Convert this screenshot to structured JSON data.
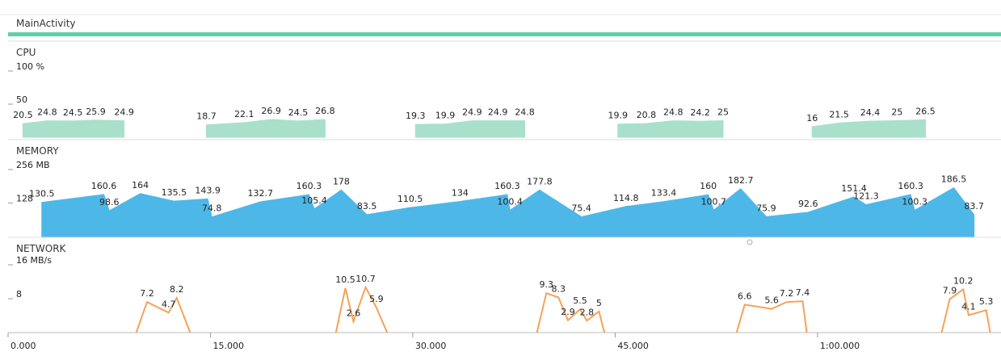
{
  "header": {
    "title": "MainActivity"
  },
  "panels": [
    {
      "type": "area",
      "title": "CPU",
      "color": "#a8e0cc",
      "ylim": [
        0,
        100
      ],
      "yticks": [
        {
          "value": 100,
          "label": "100 %"
        },
        50
      ],
      "x": [
        1.1,
        2.9,
        4.8,
        6.5,
        8.6,
        null,
        14.7,
        17.5,
        19.5,
        21.5,
        23.5,
        null,
        30.2,
        32.4,
        34.4,
        36.3,
        38.3,
        null,
        45.2,
        47.3,
        49.3,
        51.3,
        53.0,
        null,
        59.6,
        61.6,
        63.9,
        65.9,
        68.0
      ],
      "values": [
        20.5,
        24.8,
        24.5,
        25.9,
        24.9,
        null,
        18.7,
        22.1,
        26.9,
        24.5,
        26.8,
        null,
        19.3,
        19.9,
        24.9,
        24.9,
        24.8,
        null,
        19.9,
        20.8,
        24.8,
        24.2,
        25,
        null,
        16,
        21.5,
        24.4,
        25,
        26.5
      ]
    },
    {
      "type": "area",
      "title": "MEMORY",
      "color": "#4db8e8",
      "ylim": [
        0,
        256
      ],
      "yticks": [
        {
          "value": 256,
          "label": "256 MB"
        },
        128
      ],
      "x": [
        2.5,
        7.1,
        7.5,
        9.8,
        12.3,
        14.8,
        15.1,
        18.7,
        22.3,
        22.7,
        24.7,
        26.6,
        29.8,
        33.5,
        37.0,
        37.2,
        39.4,
        42.5,
        45.8,
        48.6,
        51.9,
        52.3,
        54.3,
        56.2,
        59.3,
        62.7,
        63.6,
        66.9,
        67.2,
        70.1,
        71.6
      ],
      "values": [
        130.5,
        160.6,
        98.6,
        164,
        135.5,
        143.9,
        74.8,
        132.7,
        160.3,
        105.4,
        178,
        83.5,
        110.5,
        134,
        160.3,
        100.4,
        177.8,
        75.4,
        114.8,
        133.4,
        160,
        100.7,
        182.7,
        75.9,
        92.6,
        151.4,
        121.3,
        160.3,
        100.3,
        186.5,
        83.7
      ]
    },
    {
      "type": "line",
      "title": "NETWORK",
      "color": "#f5a25a",
      "ylim": [
        0,
        16
      ],
      "yticks": [
        {
          "value": 16,
          "label": "16 MB/s"
        },
        8
      ],
      "x": [
        9.5,
        10.3,
        11.9,
        12.5,
        13.5,
        null,
        24.3,
        25.0,
        25.6,
        26.5,
        27.3,
        28.1,
        null,
        39.2,
        39.9,
        40.8,
        41.5,
        42.4,
        42.9,
        43.8,
        44.2,
        null,
        54.0,
        54.6,
        56.6,
        57.7,
        58.9,
        59.2,
        null,
        69.2,
        69.8,
        70.8,
        71.2,
        72.5,
        72.8
      ],
      "values": [
        0,
        7.2,
        4.7,
        8.2,
        0,
        null,
        0,
        10.5,
        2.6,
        10.7,
        5.9,
        0,
        null,
        0,
        9.3,
        8.3,
        2.9,
        5.5,
        2.8,
        5,
        0,
        null,
        0,
        6.6,
        5.6,
        7.2,
        7.4,
        0,
        null,
        0,
        7.9,
        10.2,
        4.1,
        5.3,
        0
      ]
    }
  ],
  "time_axis": {
    "xlim": [
      0,
      73.6
    ],
    "xticks": [
      {
        "value": 0,
        "label": "0.000"
      },
      {
        "value": 15,
        "label": "15.000"
      },
      {
        "value": 30,
        "label": "30.000"
      },
      {
        "value": 45,
        "label": "45.000"
      },
      {
        "value": 60,
        "label": "1:00.000"
      }
    ]
  }
}
